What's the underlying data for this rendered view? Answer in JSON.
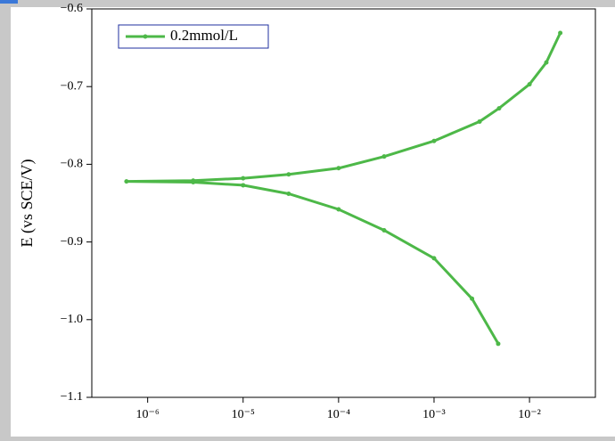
{
  "chart_data": {
    "type": "line",
    "y_label": "E (vs SCE/V)",
    "x_log": true,
    "legend": "upper left",
    "x": [
      0.0047,
      0.0025,
      0.001,
      0.0003,
      0.0001,
      3e-05,
      1e-05,
      3e-06,
      6e-07,
      3e-06,
      1e-05,
      3e-05,
      0.0001,
      0.0003,
      0.001,
      0.003,
      0.0048,
      0.01,
      0.015,
      0.021
    ],
    "series": [
      {
        "name": "0.2mmol/L",
        "color": "#4db848",
        "values": [
          -1.031,
          -0.973,
          -0.921,
          -0.885,
          -0.858,
          -0.838,
          -0.827,
          -0.823,
          -0.822,
          -0.821,
          -0.818,
          -0.813,
          -0.805,
          -0.79,
          -0.77,
          -0.745,
          -0.728,
          -0.697,
          -0.669,
          -0.631
        ]
      }
    ],
    "xlim": [
      2.6e-07,
      0.049
    ],
    "ylim": [
      -1.1,
      -0.6
    ],
    "xticks": [
      {
        "value": 1e-06,
        "label": "10⁻⁶"
      },
      {
        "value": 1e-05,
        "label": "10⁻⁵"
      },
      {
        "value": 0.0001,
        "label": "10⁻⁴"
      },
      {
        "value": 0.001,
        "label": "10⁻³"
      },
      {
        "value": 0.01,
        "label": "10⁻²"
      }
    ],
    "yticks": [
      {
        "value": -0.6,
        "label": "−0.6"
      },
      {
        "value": -0.7,
        "label": "−0.7"
      },
      {
        "value": -0.8,
        "label": "−0.8"
      },
      {
        "value": -0.9,
        "label": "−0.9"
      },
      {
        "value": -1.0,
        "label": "−1.0"
      },
      {
        "value": -1.1,
        "label": "−1.1"
      }
    ]
  }
}
